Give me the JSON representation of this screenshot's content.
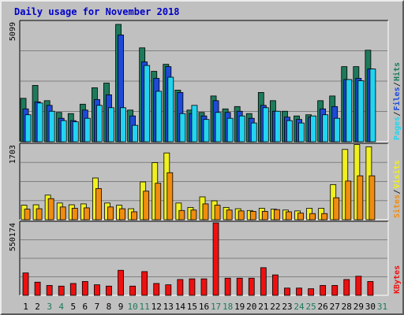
{
  "title": "Daily usage for November 2018",
  "colors": {
    "hits": "#1e7a5a",
    "files": "#1e4ad8",
    "pages": "#22d4f0",
    "visits": "#f0f020",
    "sites": "#f08c10",
    "kbytes": "#ee1010",
    "weekday_label": "#000000",
    "weekend_label": "#1e7a5a",
    "title": "#0000c8"
  },
  "chart_data": [
    {
      "type": "bar",
      "panel": "hits-files-pages",
      "ylim": [
        0,
        5099
      ],
      "ymax_label": "5099",
      "legend": [
        {
          "name": "Pages",
          "color": "#22d4f0"
        },
        {
          "name": "Files",
          "color": "#1e4ad8"
        },
        {
          "name": "Hits",
          "color": "#1e7a5a"
        }
      ],
      "categories": [
        "1",
        "2",
        "3",
        "4",
        "5",
        "6",
        "7",
        "8",
        "9",
        "10",
        "11",
        "12",
        "13",
        "14",
        "15",
        "16",
        "17",
        "18",
        "19",
        "20",
        "21",
        "22",
        "23",
        "24",
        "25",
        "26",
        "27",
        "28",
        "29",
        "30",
        "31"
      ],
      "series": [
        {
          "name": "Hits",
          "values": [
            1850,
            2400,
            1750,
            1250,
            1200,
            1600,
            2300,
            2500,
            5000,
            1350,
            4000,
            3000,
            3300,
            2200,
            1350,
            1250,
            1950,
            1400,
            1500,
            1200,
            2100,
            1750,
            1300,
            1100,
            1150,
            1750,
            1950,
            3200,
            3200,
            3900,
            0
          ]
        },
        {
          "name": "Files",
          "values": [
            1400,
            1700,
            1550,
            1000,
            900,
            1350,
            1800,
            2000,
            4550,
            1100,
            3400,
            2700,
            3200,
            2100,
            1200,
            1100,
            1750,
            1250,
            1300,
            1000,
            1550,
            1300,
            1050,
            950,
            1050,
            1400,
            1500,
            2650,
            2700,
            3100,
            0
          ]
        },
        {
          "name": "Pages",
          "values": [
            1150,
            1650,
            1300,
            900,
            850,
            1000,
            1550,
            1450,
            1450,
            700,
            3250,
            2150,
            2750,
            1200,
            1550,
            950,
            1250,
            1000,
            1100,
            800,
            1450,
            1300,
            900,
            800,
            1100,
            1150,
            1000,
            2650,
            2600,
            3100,
            0
          ]
        }
      ]
    },
    {
      "type": "bar",
      "panel": "visits-sites",
      "ylim": [
        0,
        1703
      ],
      "ymax_label": "1703",
      "legend": [
        {
          "name": "Sites",
          "color": "#f08c10"
        },
        {
          "name": "Visits",
          "color": "#f0f020"
        }
      ],
      "categories": [
        "1",
        "2",
        "3",
        "4",
        "5",
        "6",
        "7",
        "8",
        "9",
        "10",
        "11",
        "12",
        "13",
        "14",
        "15",
        "16",
        "17",
        "18",
        "19",
        "20",
        "21",
        "22",
        "23",
        "24",
        "25",
        "26",
        "27",
        "28",
        "29",
        "30",
        "31"
      ],
      "series": [
        {
          "name": "Visits",
          "values": [
            330,
            340,
            560,
            380,
            340,
            360,
            950,
            380,
            330,
            250,
            860,
            1300,
            1520,
            380,
            280,
            520,
            430,
            280,
            250,
            210,
            260,
            240,
            220,
            200,
            260,
            260,
            800,
            1600,
            1710,
            1660,
            0
          ]
        },
        {
          "name": "Sites",
          "values": [
            240,
            250,
            480,
            290,
            260,
            270,
            710,
            290,
            250,
            180,
            650,
            830,
            1070,
            210,
            220,
            360,
            330,
            220,
            200,
            190,
            190,
            230,
            180,
            150,
            140,
            140,
            500,
            880,
            1000,
            1000,
            0
          ]
        }
      ]
    },
    {
      "type": "bar",
      "panel": "kbytes",
      "ylim": [
        0,
        550174
      ],
      "ymax_label": "550174",
      "legend": [
        {
          "name": "KBytes",
          "color": "#ee1010"
        }
      ],
      "categories": [
        "1",
        "2",
        "3",
        "4",
        "5",
        "6",
        "7",
        "8",
        "9",
        "10",
        "11",
        "12",
        "13",
        "14",
        "15",
        "16",
        "17",
        "18",
        "19",
        "20",
        "21",
        "22",
        "23",
        "24",
        "25",
        "26",
        "27",
        "28",
        "29",
        "30",
        "31"
      ],
      "series": [
        {
          "name": "KBytes",
          "values": [
            170000,
            100000,
            75000,
            70000,
            90000,
            105000,
            80000,
            70000,
            190000,
            70000,
            180000,
            90000,
            80000,
            120000,
            125000,
            125000,
            550000,
            130000,
            130000,
            130000,
            210000,
            155000,
            55000,
            55000,
            50000,
            75000,
            75000,
            120000,
            145000,
            105000,
            0
          ]
        }
      ]
    }
  ],
  "x_labels": [
    {
      "label": "1",
      "weekend": false
    },
    {
      "label": "2",
      "weekend": false
    },
    {
      "label": "3",
      "weekend": true
    },
    {
      "label": "4",
      "weekend": true
    },
    {
      "label": "5",
      "weekend": false
    },
    {
      "label": "6",
      "weekend": false
    },
    {
      "label": "7",
      "weekend": false
    },
    {
      "label": "8",
      "weekend": false
    },
    {
      "label": "9",
      "weekend": false
    },
    {
      "label": "10",
      "weekend": true
    },
    {
      "label": "11",
      "weekend": true
    },
    {
      "label": "12",
      "weekend": false
    },
    {
      "label": "13",
      "weekend": false
    },
    {
      "label": "14",
      "weekend": false
    },
    {
      "label": "15",
      "weekend": false
    },
    {
      "label": "16",
      "weekend": false
    },
    {
      "label": "17",
      "weekend": true
    },
    {
      "label": "18",
      "weekend": true
    },
    {
      "label": "19",
      "weekend": false
    },
    {
      "label": "20",
      "weekend": false
    },
    {
      "label": "21",
      "weekend": false
    },
    {
      "label": "22",
      "weekend": false
    },
    {
      "label": "23",
      "weekend": false
    },
    {
      "label": "24",
      "weekend": true
    },
    {
      "label": "25",
      "weekend": true
    },
    {
      "label": "26",
      "weekend": false
    },
    {
      "label": "27",
      "weekend": false
    },
    {
      "label": "28",
      "weekend": false
    },
    {
      "label": "29",
      "weekend": false
    },
    {
      "label": "30",
      "weekend": false
    },
    {
      "label": "31",
      "weekend": true
    }
  ]
}
